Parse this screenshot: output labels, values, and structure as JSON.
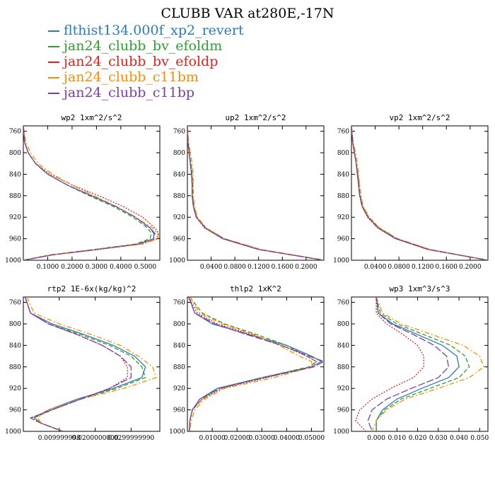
{
  "title": "CLUBB VAR at280E,-17N",
  "legend": [
    {
      "label": "flthist134.000f_xp2_revert",
      "color": "#2b7bba"
    },
    {
      "label": "jan24_clubb_bv_efoldm",
      "color": "#2ca02c"
    },
    {
      "label": "jan24_clubb_bv_efoldp",
      "color": "#e3211c"
    },
    {
      "label": "jan24_clubb_c11bm",
      "color": "#ff8c00"
    },
    {
      "label": "jan24_clubb_c11bp",
      "color": "#7b3fa6"
    }
  ],
  "chart_data": [
    {
      "type": "line",
      "title": "wp2  1xm^2/s^2",
      "ylim": [
        1000,
        750
      ],
      "yticks": [
        "760",
        "800",
        "840",
        "880",
        "920",
        "960",
        "1000"
      ],
      "xlim": [
        0,
        0.56
      ],
      "xticks": [
        "0.1000",
        "0.2000",
        "0.3000",
        "0.4000",
        "0.5000"
      ],
      "y": [
        750,
        780,
        800,
        820,
        840,
        860,
        880,
        900,
        920,
        940,
        950,
        960,
        970,
        980,
        990,
        1000
      ],
      "series": [
        {
          "values": [
            0,
            0.005,
            0.02,
            0.05,
            0.1,
            0.18,
            0.28,
            0.38,
            0.46,
            0.52,
            0.535,
            0.535,
            0.47,
            0.3,
            0.12,
            0
          ]
        },
        {
          "values": [
            0,
            0.005,
            0.02,
            0.05,
            0.1,
            0.18,
            0.27,
            0.37,
            0.45,
            0.51,
            0.525,
            0.52,
            0.46,
            0.29,
            0.11,
            0
          ]
        },
        {
          "values": [
            0,
            0.005,
            0.02,
            0.05,
            0.11,
            0.2,
            0.31,
            0.41,
            0.49,
            0.54,
            0.555,
            0.55,
            0.48,
            0.31,
            0.12,
            0
          ]
        },
        {
          "values": [
            0,
            0.01,
            0.03,
            0.06,
            0.12,
            0.2,
            0.29,
            0.38,
            0.46,
            0.53,
            0.55,
            0.555,
            0.49,
            0.3,
            0.11,
            0
          ]
        },
        {
          "values": [
            0,
            0.005,
            0.02,
            0.05,
            0.1,
            0.18,
            0.28,
            0.38,
            0.46,
            0.52,
            0.54,
            0.535,
            0.47,
            0.3,
            0.12,
            0
          ]
        }
      ]
    },
    {
      "type": "line",
      "title": "up2  1xm^2/s^2",
      "ylim": [
        1000,
        750
      ],
      "yticks": [
        "760",
        "800",
        "840",
        "880",
        "920",
        "960",
        "1000"
      ],
      "xlim": [
        0,
        0.23
      ],
      "xticks": [
        "0.0400",
        "0.0800",
        "0.1200",
        "0.1600",
        "0.2000"
      ],
      "y": [
        750,
        780,
        800,
        820,
        840,
        860,
        880,
        900,
        920,
        940,
        960,
        980,
        1000
      ],
      "series": [
        {
          "values": [
            0,
            0.001,
            0.003,
            0.005,
            0.007,
            0.008,
            0.008,
            0.01,
            0.015,
            0.03,
            0.06,
            0.12,
            0.23
          ]
        },
        {
          "values": [
            0,
            0.001,
            0.003,
            0.006,
            0.008,
            0.009,
            0.009,
            0.011,
            0.016,
            0.031,
            0.062,
            0.123,
            0.23
          ]
        },
        {
          "values": [
            0,
            0.001,
            0.003,
            0.005,
            0.007,
            0.008,
            0.008,
            0.01,
            0.015,
            0.029,
            0.059,
            0.119,
            0.23
          ]
        },
        {
          "values": [
            0,
            0.002,
            0.005,
            0.008,
            0.01,
            0.01,
            0.01,
            0.012,
            0.017,
            0.032,
            0.063,
            0.124,
            0.23
          ]
        },
        {
          "values": [
            0,
            0.001,
            0.003,
            0.005,
            0.007,
            0.008,
            0.008,
            0.01,
            0.015,
            0.03,
            0.061,
            0.121,
            0.23
          ]
        }
      ]
    },
    {
      "type": "line",
      "title": "vp2  1xm^2/s^2",
      "ylim": [
        1000,
        750
      ],
      "yticks": [
        "760",
        "800",
        "840",
        "880",
        "920",
        "960",
        "1000"
      ],
      "xlim": [
        0,
        0.23
      ],
      "xticks": [
        "0.0400",
        "0.0800",
        "0.1200",
        "0.1600",
        "0.2000"
      ],
      "y": [
        750,
        780,
        800,
        820,
        840,
        860,
        880,
        900,
        920,
        940,
        960,
        980,
        1000
      ],
      "series": [
        {
          "values": [
            0,
            0.002,
            0.005,
            0.008,
            0.01,
            0.012,
            0.014,
            0.018,
            0.028,
            0.045,
            0.075,
            0.13,
            0.23
          ]
        },
        {
          "values": [
            0,
            0.002,
            0.005,
            0.008,
            0.011,
            0.013,
            0.015,
            0.019,
            0.029,
            0.047,
            0.077,
            0.132,
            0.23
          ]
        },
        {
          "values": [
            0,
            0.002,
            0.005,
            0.008,
            0.01,
            0.012,
            0.014,
            0.018,
            0.027,
            0.044,
            0.074,
            0.128,
            0.23
          ]
        },
        {
          "values": [
            0,
            0.003,
            0.007,
            0.01,
            0.012,
            0.014,
            0.016,
            0.02,
            0.03,
            0.048,
            0.078,
            0.133,
            0.23
          ]
        },
        {
          "values": [
            0,
            0.002,
            0.005,
            0.008,
            0.01,
            0.012,
            0.014,
            0.018,
            0.028,
            0.045,
            0.076,
            0.13,
            0.23
          ]
        }
      ]
    },
    {
      "type": "line",
      "title": "rtp2  1E-6x(kg/kg)^2",
      "ylim": [
        1000,
        750
      ],
      "yticks": [
        "760",
        "800",
        "840",
        "880",
        "920",
        "960",
        "1000"
      ],
      "xlim": [
        0,
        0.038
      ],
      "xticks": [
        "0.009999998",
        "0.0200000000",
        "0.0299999990"
      ],
      "y": [
        750,
        780,
        800,
        820,
        840,
        860,
        880,
        900,
        920,
        940,
        960,
        975,
        985,
        1000
      ],
      "series": [
        {
          "values": [
            0.0005,
            0.002,
            0.008,
            0.017,
            0.025,
            0.031,
            0.034,
            0.033,
            0.025,
            0.015,
            0.007,
            0.003,
            0.005,
            0.011
          ]
        },
        {
          "values": [
            0.0005,
            0.002,
            0.007,
            0.016,
            0.024,
            0.03,
            0.033,
            0.034,
            0.026,
            0.016,
            0.008,
            0.003,
            0.005,
            0.011
          ]
        },
        {
          "values": [
            0.0005,
            0.002,
            0.007,
            0.015,
            0.022,
            0.027,
            0.029,
            0.029,
            0.024,
            0.016,
            0.008,
            0.002,
            0.005,
            0.011
          ]
        },
        {
          "values": [
            0.001,
            0.003,
            0.01,
            0.019,
            0.027,
            0.032,
            0.036,
            0.037,
            0.028,
            0.016,
            0.007,
            0.004,
            0.005,
            0.011
          ]
        },
        {
          "values": [
            0.0005,
            0.002,
            0.007,
            0.015,
            0.022,
            0.027,
            0.03,
            0.03,
            0.024,
            0.016,
            0.008,
            0.002,
            0.005,
            0.011
          ]
        }
      ]
    },
    {
      "type": "line",
      "title": "thlp2  1xK^2",
      "ylim": [
        1000,
        750
      ],
      "yticks": [
        "760",
        "800",
        "840",
        "880",
        "920",
        "960",
        "1000"
      ],
      "xlim": [
        0,
        0.055
      ],
      "xticks": [
        "0.01000",
        "0.02000",
        "0.03000",
        "0.04000",
        "0.05000"
      ],
      "y": [
        750,
        780,
        800,
        820,
        840,
        860,
        870,
        880,
        900,
        920,
        940,
        960,
        980,
        1000
      ],
      "series": [
        {
          "values": [
            0.0005,
            0.003,
            0.01,
            0.025,
            0.04,
            0.05,
            0.054,
            0.05,
            0.03,
            0.012,
            0.005,
            0.002,
            0.001,
            0.0008
          ]
        },
        {
          "values": [
            0.001,
            0.006,
            0.015,
            0.028,
            0.04,
            0.048,
            0.052,
            0.049,
            0.03,
            0.013,
            0.006,
            0.002,
            0.001,
            0.0008
          ]
        },
        {
          "values": [
            0.0005,
            0.004,
            0.012,
            0.026,
            0.038,
            0.048,
            0.052,
            0.05,
            0.032,
            0.014,
            0.006,
            0.002,
            0.001,
            0.0008
          ]
        },
        {
          "values": [
            0.001,
            0.005,
            0.014,
            0.027,
            0.037,
            0.045,
            0.05,
            0.05,
            0.035,
            0.015,
            0.007,
            0.003,
            0.0015,
            0.001
          ]
        },
        {
          "values": [
            0.0005,
            0.003,
            0.011,
            0.024,
            0.038,
            0.049,
            0.055,
            0.051,
            0.031,
            0.013,
            0.005,
            0.002,
            0.001,
            0.0008
          ]
        }
      ]
    },
    {
      "type": "line",
      "title": "wp3  1xm^3/s^3",
      "ylim": [
        1000,
        750
      ],
      "yticks": [
        "760",
        "800",
        "840",
        "880",
        "920",
        "960",
        "1000"
      ],
      "xlim": [
        -0.012,
        0.054
      ],
      "xticks": [
        "0.000",
        "0.010",
        "0.020",
        "0.030",
        "0.040",
        "0.050"
      ],
      "y": [
        750,
        780,
        800,
        820,
        840,
        860,
        880,
        900,
        920,
        940,
        960,
        980,
        1000
      ],
      "series": [
        {
          "values": [
            0,
            0.001,
            0.008,
            0.02,
            0.032,
            0.039,
            0.04,
            0.035,
            0.022,
            0.01,
            0.003,
            0.0,
            0.0
          ]
        },
        {
          "values": [
            0,
            0.002,
            0.01,
            0.023,
            0.036,
            0.043,
            0.045,
            0.04,
            0.026,
            0.012,
            0.004,
            0.0,
            0.0
          ]
        },
        {
          "values": [
            0,
            0.0,
            0.005,
            0.013,
            0.02,
            0.023,
            0.023,
            0.018,
            0.007,
            -0.002,
            -0.008,
            -0.01,
            -0.005
          ]
        },
        {
          "values": [
            0,
            0.003,
            0.012,
            0.027,
            0.042,
            0.05,
            0.052,
            0.045,
            0.03,
            0.014,
            0.005,
            0.0,
            -0.002
          ]
        },
        {
          "values": [
            0,
            0.001,
            0.007,
            0.018,
            0.028,
            0.034,
            0.035,
            0.03,
            0.017,
            0.005,
            -0.002,
            -0.004,
            -0.002
          ]
        }
      ]
    }
  ]
}
